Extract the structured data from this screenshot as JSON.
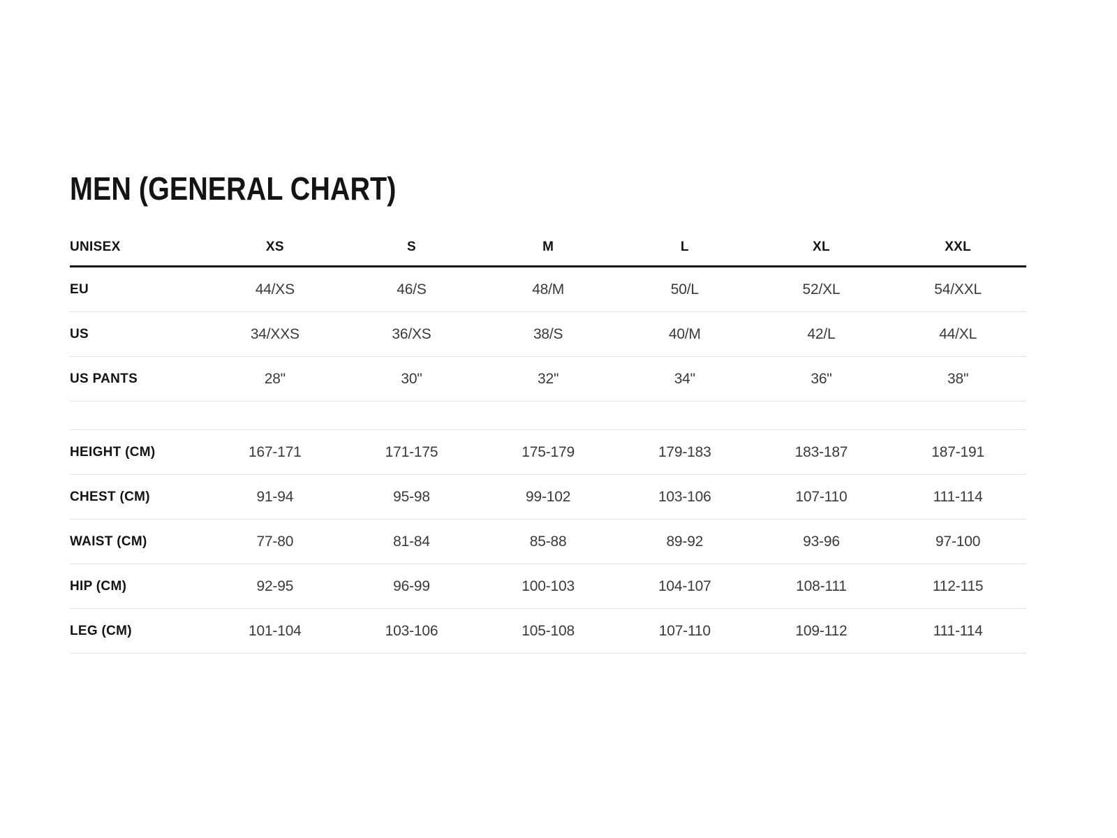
{
  "title": "MEN (GENERAL CHART)",
  "colors": {
    "background": "#ffffff",
    "text_primary": "#141414",
    "text_secondary": "#3a3a3a",
    "header_rule": "#161616",
    "row_divider": "#dfe4e4"
  },
  "table": {
    "columns": [
      "UNISEX",
      "XS",
      "S",
      "M",
      "L",
      "XL",
      "XXL"
    ],
    "sections": [
      {
        "rows": [
          {
            "label": "EU",
            "values": [
              "44/XS",
              "46/S",
              "48/M",
              "50/L",
              "52/XL",
              "54/XXL"
            ]
          },
          {
            "label": "US",
            "values": [
              "34/XXS",
              "36/XS",
              "38/S",
              "40/M",
              "42/L",
              "44/XL"
            ]
          },
          {
            "label": "US PANTS",
            "values": [
              "28\"",
              "30\"",
              "32\"",
              "34\"",
              "36\"",
              "38\""
            ]
          }
        ]
      },
      {
        "rows": [
          {
            "label": "HEIGHT (CM)",
            "values": [
              "167-171",
              "171-175",
              "175-179",
              "179-183",
              "183-187",
              "187-191"
            ]
          },
          {
            "label": "CHEST (CM)",
            "values": [
              "91-94",
              "95-98",
              "99-102",
              "103-106",
              "107-110",
              "111-114"
            ]
          },
          {
            "label": "WAIST (CM)",
            "values": [
              "77-80",
              "81-84",
              "85-88",
              "89-92",
              "93-96",
              "97-100"
            ]
          },
          {
            "label": "HIP (CM)",
            "values": [
              "92-95",
              "96-99",
              "100-103",
              "104-107",
              "108-111",
              "112-115"
            ]
          },
          {
            "label": "LEG (CM)",
            "values": [
              "101-104",
              "103-106",
              "105-108",
              "107-110",
              "109-112",
              "111-114"
            ]
          }
        ]
      }
    ]
  }
}
